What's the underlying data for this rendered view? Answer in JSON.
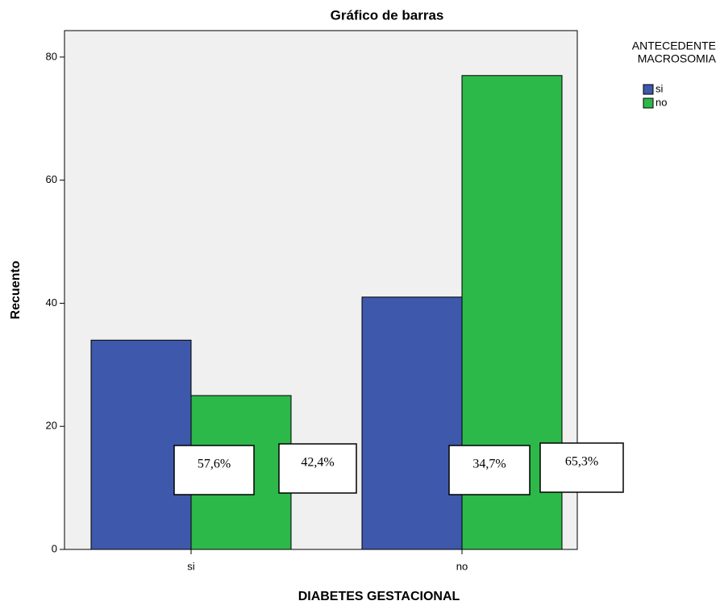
{
  "chart_data": {
    "type": "bar",
    "title": "Gráfico de barras",
    "x_label": "DIABETES GESTACIONAL",
    "y_label": "Recuento",
    "categories": [
      "si",
      "no"
    ],
    "legend_title": [
      "ANTECEDENTE",
      "MACROSOMIA"
    ],
    "series": [
      {
        "name": "si",
        "color": "#3e58ac",
        "values": [
          34,
          41
        ]
      },
      {
        "name": "no",
        "color": "#2db84a",
        "values": [
          25,
          77
        ]
      }
    ],
    "ylim": [
      0,
      84.3
    ],
    "yticks": [
      0,
      20,
      40,
      60,
      80
    ],
    "legend": "right",
    "annotations": [
      "57,6%",
      "42,4%",
      "34,7%",
      "65,3%"
    ]
  }
}
